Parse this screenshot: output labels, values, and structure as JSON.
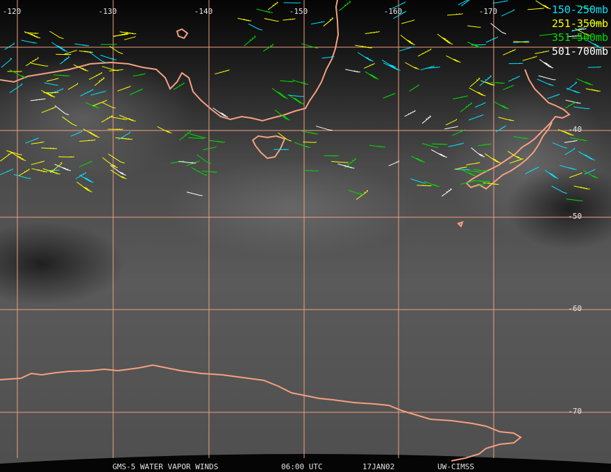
{
  "map": {
    "longitude_labels": [
      "-120",
      "-130",
      "-140",
      "-150",
      "-160",
      "-170"
    ],
    "latitude_labels": [
      "-40",
      "-50",
      "-60",
      "-70"
    ],
    "legend": [
      {
        "label": "150-250mb",
        "color": "#00e5ff"
      },
      {
        "label": "251-350mb",
        "color": "#ffff00"
      },
      {
        "label": "351-500mb",
        "color": "#00dd00"
      },
      {
        "label": "501-700mb",
        "color": "#ffffff"
      }
    ],
    "footer": [
      "GMS-5 WATER VAPOR WINDS",
      "06:00 UTC",
      "17JAN02",
      "UW-CIMSS"
    ]
  }
}
